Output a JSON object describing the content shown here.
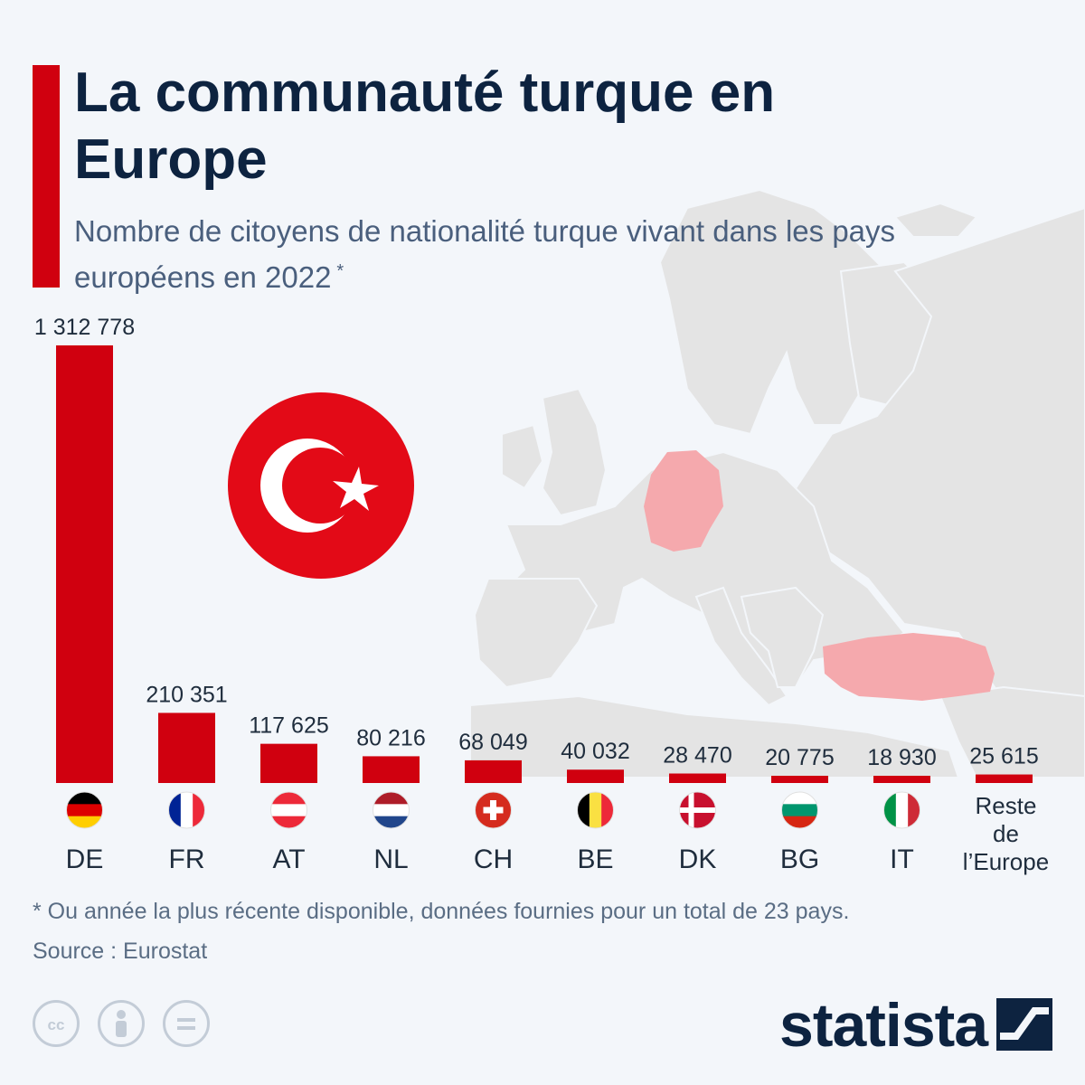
{
  "header": {
    "title": "La communauté turque en Europe",
    "subtitle": "Nombre de citoyens de nationalité turque vivant dans les pays européens en 2022",
    "subtitle_marker": "*"
  },
  "chart_data": {
    "type": "bar",
    "title": "La communauté turque en Europe",
    "subtitle": "Nombre de citoyens de nationalité turque vivant dans les pays européens en 2022 *",
    "categories": [
      "DE",
      "FR",
      "AT",
      "NL",
      "CH",
      "BE",
      "DK",
      "BG",
      "IT",
      "Reste de l’Europe"
    ],
    "category_label_lines": [
      [
        "DE"
      ],
      [
        "FR"
      ],
      [
        "AT"
      ],
      [
        "NL"
      ],
      [
        "CH"
      ],
      [
        "BE"
      ],
      [
        "DK"
      ],
      [
        "BG"
      ],
      [
        "IT"
      ],
      [
        "Reste",
        "de",
        "l’Europe"
      ]
    ],
    "values": [
      1312778,
      210351,
      117625,
      80216,
      68049,
      40032,
      28470,
      20775,
      18930,
      25615
    ],
    "value_labels": [
      "1 312 778",
      "210 351",
      "117 625",
      "80 216",
      "68 049",
      "40 032",
      "28 470",
      "20 775",
      "18 930",
      "25 615"
    ],
    "flags": [
      "flag-de",
      "flag-fr",
      "flag-at",
      "flag-nl",
      "flag-ch",
      "flag-be",
      "flag-dk",
      "flag-bg",
      "flag-it",
      ""
    ],
    "ylim": [
      0,
      1312778
    ],
    "xlabel": "",
    "ylabel": "",
    "grid": false,
    "bar_color": "#d0000f"
  },
  "decor": {
    "center_emblem": "turkey-flag-icon",
    "map_highlight_color": "#f5a9ad",
    "map_color": "#e4e4e4"
  },
  "footer": {
    "footnote": "* Ou année la plus récente disponible, données fournies pour un total de 23 pays.",
    "source": "Source : Eurostat",
    "license_icons": [
      "cc-icon",
      "by-icon",
      "nd-icon"
    ],
    "brand": "statista"
  },
  "colors": {
    "accent": "#d0000f",
    "title": "#0d2340",
    "subtitle": "#4a5f7d",
    "background": "#f3f6fa"
  }
}
